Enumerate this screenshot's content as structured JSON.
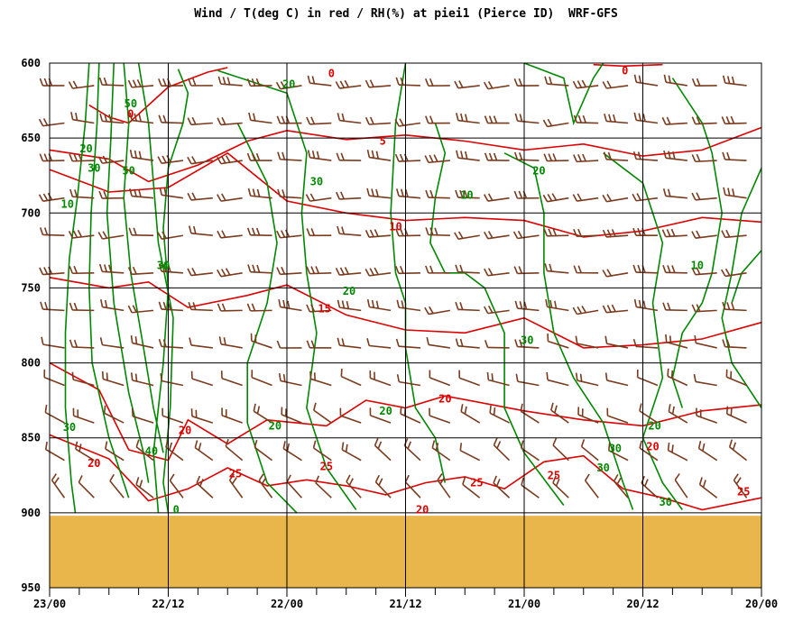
{
  "title": "Wind / T(deg C) in red / RH(%) at piei1 (Pierce ID)  WRF-GFS",
  "colors": {
    "temperature": "#dd0000",
    "rh": "#008800",
    "wind": "#7a3b1e",
    "ground": "#e8b64a",
    "grid": "#000000"
  },
  "chart_data": {
    "type": "line",
    "title": "Wind / T(deg C) in red / RH(%) at piei1 (Pierce ID)  WRF-GFS",
    "xlabel": "",
    "ylabel": "",
    "x_tick_labels": [
      "23/00",
      "22/12",
      "22/00",
      "21/12",
      "21/00",
      "20/12",
      "20/00"
    ],
    "x_ticks_hours": [
      0,
      12,
      24,
      36,
      48,
      60,
      72
    ],
    "y_tick_labels": [
      "600",
      "650",
      "700",
      "750",
      "800",
      "850",
      "900",
      "950"
    ],
    "y_ticks_hpa": [
      600,
      650,
      700,
      750,
      800,
      850,
      900,
      950
    ],
    "ylim": [
      600,
      950
    ],
    "grid": true,
    "surface_pressure_hpa": 902,
    "series": [
      {
        "name": "T(deg C)",
        "kind": "contours",
        "levels": [
          0,
          5,
          10,
          15,
          20,
          25
        ],
        "labels": [
          {
            "text": "0",
            "t": 28.5,
            "p": 607
          },
          {
            "text": "0",
            "t": 8.2,
            "p": 634
          },
          {
            "text": "0",
            "t": 58.2,
            "p": 605
          },
          {
            "text": "5",
            "t": 33.7,
            "p": 652
          },
          {
            "text": "10",
            "t": 35.0,
            "p": 709
          },
          {
            "text": "15",
            "t": 27.8,
            "p": 764
          },
          {
            "text": "20",
            "t": 4.5,
            "p": 867
          },
          {
            "text": "20",
            "t": 13.7,
            "p": 845
          },
          {
            "text": "20",
            "t": 40.0,
            "p": 824
          },
          {
            "text": "20",
            "t": 37.7,
            "p": 898
          },
          {
            "text": "20",
            "t": 61.0,
            "p": 856
          },
          {
            "text": "25",
            "t": 18.8,
            "p": 874
          },
          {
            "text": "25",
            "t": 28.0,
            "p": 869
          },
          {
            "text": "25",
            "t": 43.2,
            "p": 880
          },
          {
            "text": "25",
            "t": 51.0,
            "p": 875
          },
          {
            "text": "25",
            "t": 70.2,
            "p": 886
          }
        ]
      },
      {
        "name": "RH(%)",
        "kind": "contours",
        "levels": [
          10,
          20,
          30,
          40,
          50
        ],
        "labels": [
          {
            "text": "20",
            "t": 24.2,
            "p": 614
          },
          {
            "text": "50",
            "t": 8.2,
            "p": 627
          },
          {
            "text": "20",
            "t": 3.7,
            "p": 657
          },
          {
            "text": "30",
            "t": 4.5,
            "p": 670
          },
          {
            "text": "50",
            "t": 8.0,
            "p": 672
          },
          {
            "text": "10",
            "t": 1.8,
            "p": 694
          },
          {
            "text": "30",
            "t": 27.0,
            "p": 679
          },
          {
            "text": "10",
            "t": 42.2,
            "p": 688
          },
          {
            "text": "20",
            "t": 49.5,
            "p": 672
          },
          {
            "text": "30",
            "t": 11.5,
            "p": 735
          },
          {
            "text": "20",
            "t": 30.3,
            "p": 752
          },
          {
            "text": "10",
            "t": 65.5,
            "p": 735
          },
          {
            "text": "30",
            "t": 48.3,
            "p": 785
          },
          {
            "text": "30",
            "t": 2.0,
            "p": 843
          },
          {
            "text": "40",
            "t": 10.3,
            "p": 859
          },
          {
            "text": "20",
            "t": 22.8,
            "p": 842
          },
          {
            "text": "20",
            "t": 34.0,
            "p": 832
          },
          {
            "text": "30",
            "t": 57.2,
            "p": 857
          },
          {
            "text": "30",
            "t": 56.0,
            "p": 870
          },
          {
            "text": "20",
            "t": 61.2,
            "p": 842
          },
          {
            "text": "30",
            "t": 62.3,
            "p": 893
          },
          {
            "text": "0",
            "t": 12.8,
            "p": 898
          }
        ]
      }
    ],
    "wind": {
      "barb_levels_hpa": [
        615,
        640,
        665,
        690,
        715,
        740,
        765,
        790,
        815,
        840,
        865,
        890
      ],
      "columns": 24
    }
  }
}
